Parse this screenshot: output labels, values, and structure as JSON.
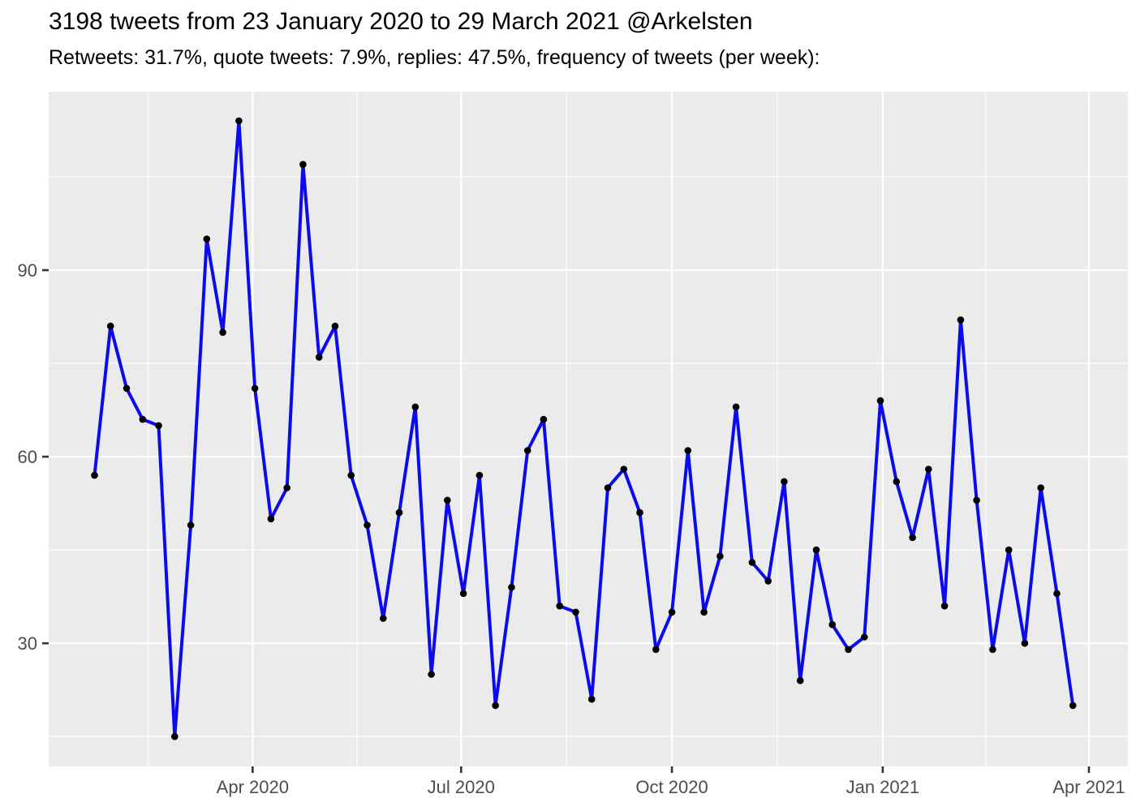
{
  "header": {
    "title": "3198 tweets from 23 January 2020 to 29 March 2021 @Arkelsten",
    "subtitle": "Retweets: 31.7%, quote tweets: 7.9%, replies: 47.5%, frequency of tweets (per week):"
  },
  "chart_data": {
    "type": "line",
    "title": "3198 tweets from 23 January 2020 to 29 March 2021 @Arkelsten",
    "subtitle": "Retweets: 31.7%, quote tweets: 7.9%, replies: 47.5%, frequency of tweets (per week):",
    "xlabel": "",
    "ylabel": "",
    "grid": "on",
    "legend": "none",
    "panel_bg": "#EBEBEB",
    "grid_color": "#FFFFFF",
    "line_color": "#0B0BEE",
    "point_color": "#000000",
    "tick_mark_color": "#333333",
    "tick_label_color": "#4D4D4D",
    "x_start_date": "2020-01-23",
    "x_domain_days": [
      -20,
      451
    ],
    "y_domain": [
      10.2,
      118.7
    ],
    "y_ticks": [
      {
        "value": 30,
        "label": "30"
      },
      {
        "value": 60,
        "label": "60"
      },
      {
        "value": 90,
        "label": "90"
      }
    ],
    "y_minor_ticks": [
      15,
      45,
      75,
      105
    ],
    "x_ticks": [
      {
        "day": 69,
        "label": "Apr 2020"
      },
      {
        "day": 160,
        "label": "Jul 2020"
      },
      {
        "day": 252,
        "label": "Oct 2020"
      },
      {
        "day": 344,
        "label": "Jan 2021"
      },
      {
        "day": 434,
        "label": "Apr 2021"
      }
    ],
    "x_minor_ticks_days": [
      23.5,
      114.5,
      206,
      298,
      389
    ],
    "points": [
      {
        "date": "2020-01-23",
        "value": 57
      },
      {
        "date": "2020-01-30",
        "value": 81
      },
      {
        "date": "2020-02-06",
        "value": 71
      },
      {
        "date": "2020-02-13",
        "value": 66
      },
      {
        "date": "2020-02-20",
        "value": 65
      },
      {
        "date": "2020-02-27",
        "value": 15
      },
      {
        "date": "2020-03-05",
        "value": 49
      },
      {
        "date": "2020-03-12",
        "value": 95
      },
      {
        "date": "2020-03-19",
        "value": 80
      },
      {
        "date": "2020-03-26",
        "value": 114
      },
      {
        "date": "2020-04-02",
        "value": 71
      },
      {
        "date": "2020-04-09",
        "value": 50
      },
      {
        "date": "2020-04-16",
        "value": 55
      },
      {
        "date": "2020-04-23",
        "value": 107
      },
      {
        "date": "2020-04-30",
        "value": 76
      },
      {
        "date": "2020-05-07",
        "value": 81
      },
      {
        "date": "2020-05-14",
        "value": 57
      },
      {
        "date": "2020-05-21",
        "value": 49
      },
      {
        "date": "2020-05-28",
        "value": 34
      },
      {
        "date": "2020-06-04",
        "value": 51
      },
      {
        "date": "2020-06-11",
        "value": 68
      },
      {
        "date": "2020-06-18",
        "value": 25
      },
      {
        "date": "2020-06-25",
        "value": 53
      },
      {
        "date": "2020-07-02",
        "value": 38
      },
      {
        "date": "2020-07-09",
        "value": 57
      },
      {
        "date": "2020-07-16",
        "value": 20
      },
      {
        "date": "2020-07-23",
        "value": 39
      },
      {
        "date": "2020-07-30",
        "value": 61
      },
      {
        "date": "2020-08-06",
        "value": 66
      },
      {
        "date": "2020-08-13",
        "value": 36
      },
      {
        "date": "2020-08-20",
        "value": 35
      },
      {
        "date": "2020-08-27",
        "value": 21
      },
      {
        "date": "2020-09-03",
        "value": 55
      },
      {
        "date": "2020-09-10",
        "value": 58
      },
      {
        "date": "2020-09-17",
        "value": 51
      },
      {
        "date": "2020-09-24",
        "value": 29
      },
      {
        "date": "2020-10-01",
        "value": 35
      },
      {
        "date": "2020-10-08",
        "value": 61
      },
      {
        "date": "2020-10-15",
        "value": 35
      },
      {
        "date": "2020-10-22",
        "value": 44
      },
      {
        "date": "2020-10-29",
        "value": 68
      },
      {
        "date": "2020-11-05",
        "value": 43
      },
      {
        "date": "2020-11-12",
        "value": 40
      },
      {
        "date": "2020-11-19",
        "value": 56
      },
      {
        "date": "2020-11-26",
        "value": 24
      },
      {
        "date": "2020-12-03",
        "value": 45
      },
      {
        "date": "2020-12-10",
        "value": 33
      },
      {
        "date": "2020-12-17",
        "value": 29
      },
      {
        "date": "2020-12-24",
        "value": 31
      },
      {
        "date": "2020-12-31",
        "value": 69
      },
      {
        "date": "2021-01-07",
        "value": 56
      },
      {
        "date": "2021-01-14",
        "value": 47
      },
      {
        "date": "2021-01-21",
        "value": 58
      },
      {
        "date": "2021-01-28",
        "value": 36
      },
      {
        "date": "2021-02-04",
        "value": 82
      },
      {
        "date": "2021-02-11",
        "value": 53
      },
      {
        "date": "2021-02-18",
        "value": 29
      },
      {
        "date": "2021-02-25",
        "value": 45
      },
      {
        "date": "2021-03-04",
        "value": 30
      },
      {
        "date": "2021-03-11",
        "value": 55
      },
      {
        "date": "2021-03-18",
        "value": 38
      },
      {
        "date": "2021-03-25",
        "value": 20
      }
    ]
  }
}
